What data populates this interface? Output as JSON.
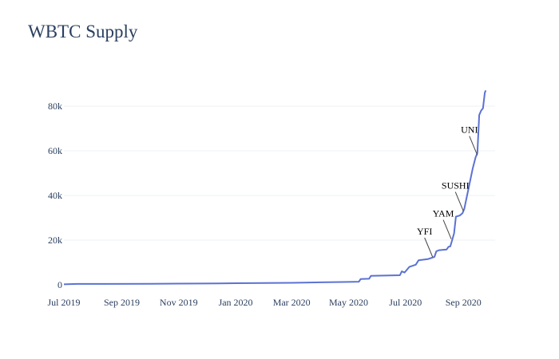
{
  "chart_data": {
    "type": "line",
    "title": "WBTC Supply",
    "xlabel": "",
    "ylabel": "",
    "xlim": [
      "2019-07-01",
      "2020-10-05"
    ],
    "ylim": [
      0,
      90000
    ],
    "grid": true,
    "line_color": "#5b72d4",
    "x_ticks": [
      {
        "label": "Jul 2019",
        "date": "2019-07-01"
      },
      {
        "label": "Sep 2019",
        "date": "2019-09-01"
      },
      {
        "label": "Nov 2019",
        "date": "2019-11-01"
      },
      {
        "label": "Jan 2020",
        "date": "2020-01-01"
      },
      {
        "label": "Mar 2020",
        "date": "2020-03-01"
      },
      {
        "label": "May 2020",
        "date": "2020-05-01"
      },
      {
        "label": "Jul 2020",
        "date": "2020-07-01"
      },
      {
        "label": "Sep 2020",
        "date": "2020-09-01"
      }
    ],
    "y_ticks": [
      {
        "label": "0",
        "value": 0
      },
      {
        "label": "20k",
        "value": 20000
      },
      {
        "label": "40k",
        "value": 40000
      },
      {
        "label": "60k",
        "value": 60000
      },
      {
        "label": "80k",
        "value": 80000
      }
    ],
    "series": [
      {
        "name": "WBTC Supply",
        "points": [
          [
            "2019-07-01",
            200
          ],
          [
            "2019-07-15",
            400
          ],
          [
            "2019-08-15",
            400
          ],
          [
            "2019-10-01",
            450
          ],
          [
            "2019-11-01",
            550
          ],
          [
            "2019-12-15",
            600
          ],
          [
            "2020-01-01",
            700
          ],
          [
            "2020-02-01",
            800
          ],
          [
            "2020-03-01",
            900
          ],
          [
            "2020-04-01",
            1100
          ],
          [
            "2020-05-01",
            1300
          ],
          [
            "2020-05-12",
            1400
          ],
          [
            "2020-05-14",
            2600
          ],
          [
            "2020-05-23",
            2700
          ],
          [
            "2020-05-25",
            4000
          ],
          [
            "2020-06-25",
            4300
          ],
          [
            "2020-06-27",
            6000
          ],
          [
            "2020-06-30",
            5500
          ],
          [
            "2020-07-05",
            8000
          ],
          [
            "2020-07-12",
            9000
          ],
          [
            "2020-07-15",
            11000
          ],
          [
            "2020-07-25",
            11500
          ],
          [
            "2020-08-01",
            12500
          ],
          [
            "2020-08-03",
            15000
          ],
          [
            "2020-08-06",
            15500
          ],
          [
            "2020-08-14",
            15800
          ],
          [
            "2020-08-16",
            17000
          ],
          [
            "2020-08-18",
            17200
          ],
          [
            "2020-08-20",
            20000
          ],
          [
            "2020-08-22",
            23000
          ],
          [
            "2020-08-24",
            30500
          ],
          [
            "2020-08-28",
            31000
          ],
          [
            "2020-08-31",
            32000
          ],
          [
            "2020-09-02",
            34000
          ],
          [
            "2020-09-05",
            40000
          ],
          [
            "2020-09-08",
            46000
          ],
          [
            "2020-09-11",
            52000
          ],
          [
            "2020-09-14",
            57000
          ],
          [
            "2020-09-16",
            59000
          ],
          [
            "2020-09-18",
            76000
          ],
          [
            "2020-09-20",
            78000
          ],
          [
            "2020-09-22",
            79000
          ],
          [
            "2020-09-24",
            86000
          ],
          [
            "2020-09-25",
            87000
          ]
        ]
      }
    ],
    "annotations": [
      {
        "text": "YFI",
        "date": "2020-07-30",
        "value": 12500
      },
      {
        "text": "YAM",
        "date": "2020-08-19",
        "value": 20500
      },
      {
        "text": "SUSHI",
        "date": "2020-09-01",
        "value": 33000
      },
      {
        "text": "UNI",
        "date": "2020-09-16",
        "value": 58000
      }
    ]
  }
}
